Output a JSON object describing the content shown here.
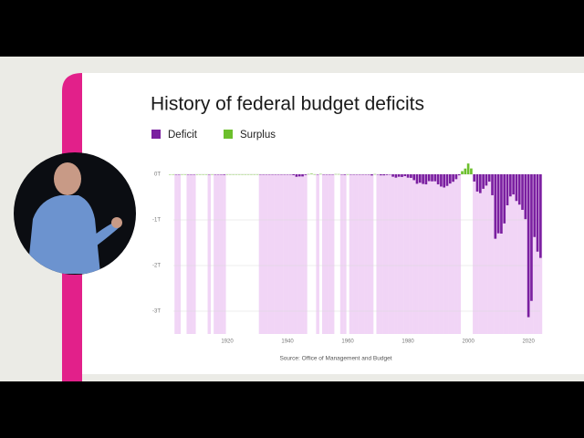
{
  "chart_data": {
    "type": "bar",
    "title": "History of federal budget deficits",
    "source": "Source: Office of Management and Budget",
    "x": [
      1901,
      1902,
      1903,
      1904,
      1905,
      1906,
      1907,
      1908,
      1909,
      1910,
      1911,
      1912,
      1913,
      1914,
      1915,
      1916,
      1917,
      1918,
      1919,
      1920,
      1921,
      1922,
      1923,
      1924,
      1925,
      1926,
      1927,
      1928,
      1929,
      1930,
      1931,
      1932,
      1933,
      1934,
      1935,
      1936,
      1937,
      1938,
      1939,
      1940,
      1941,
      1942,
      1943,
      1944,
      1945,
      1946,
      1947,
      1948,
      1949,
      1950,
      1951,
      1952,
      1953,
      1954,
      1955,
      1956,
      1957,
      1958,
      1959,
      1960,
      1961,
      1962,
      1963,
      1964,
      1965,
      1966,
      1967,
      1968,
      1969,
      1970,
      1971,
      1972,
      1973,
      1974,
      1975,
      1976,
      1977,
      1978,
      1979,
      1980,
      1981,
      1982,
      1983,
      1984,
      1985,
      1986,
      1987,
      1988,
      1989,
      1990,
      1991,
      1992,
      1993,
      1994,
      1995,
      1996,
      1997,
      1998,
      1999,
      2000,
      2001,
      2002,
      2003,
      2004,
      2005,
      2006,
      2007,
      2008,
      2009,
      2010,
      2011,
      2012,
      2013,
      2014,
      2015,
      2016,
      2017,
      2018,
      2019,
      2020,
      2021,
      2022,
      2023,
      2024
    ],
    "series": [
      {
        "name": "Deficit",
        "color": "#7a1fa0",
        "shade_color": "#f1d5f6",
        "values": [
          0.0001,
          0.0001,
          -0.0001,
          -0.0001,
          0.0001,
          0.0001,
          -0.0001,
          -0.0001,
          -0.0001,
          0.0001,
          0.0001,
          0.0001,
          0.0001,
          -0.0001,
          0.0001,
          -0.0001,
          -0.001,
          -0.009,
          -0.013,
          0.0003,
          0.0005,
          0.0005,
          0.0005,
          0.0005,
          0.0005,
          0.0005,
          0.0005,
          0.0005,
          0.0005,
          0.0007,
          -0.0005,
          -0.0027,
          -0.0026,
          -0.0036,
          -0.0028,
          -0.0044,
          -0.0028,
          -0.0001,
          -0.0029,
          -0.0029,
          -0.0049,
          -0.02,
          -0.0547,
          -0.0474,
          -0.0474,
          -0.0159,
          0.004,
          0.0119,
          0.0006,
          -0.0031,
          0.0061,
          -0.0015,
          -0.0065,
          -0.0012,
          -0.003,
          0.0039,
          0.0034,
          -0.0028,
          -0.0128,
          0.0003,
          -0.0033,
          -0.0071,
          -0.0048,
          -0.0059,
          -0.0014,
          -0.0037,
          -0.0086,
          -0.0252,
          0.0032,
          -0.0028,
          -0.023,
          -0.0234,
          -0.0149,
          -0.0061,
          -0.0532,
          -0.0737,
          -0.0537,
          -0.059,
          -0.0407,
          -0.0738,
          -0.079,
          -0.128,
          -0.208,
          -0.185,
          -0.212,
          -0.221,
          -0.15,
          -0.155,
          -0.153,
          -0.221,
          -0.269,
          -0.29,
          -0.255,
          -0.203,
          -0.164,
          -0.107,
          -0.022,
          0.069,
          0.126,
          0.236,
          0.128,
          -0.158,
          -0.378,
          -0.413,
          -0.318,
          -0.248,
          -0.161,
          -0.459,
          -1.413,
          -1.294,
          -1.3,
          -1.077,
          -0.68,
          -0.485,
          -0.442,
          -0.585,
          -0.665,
          -0.779,
          -0.984,
          -3.132,
          -2.775,
          -1.375,
          -1.695,
          -1.833
        ]
      },
      {
        "name": "Surplus",
        "color": "#6cbf2c"
      }
    ],
    "xlim": [
      1900,
      2024.5
    ],
    "xticks": [
      1920,
      1940,
      1960,
      1980,
      2000,
      2020
    ],
    "ylim": [
      -3.5,
      0.32
    ],
    "yticks": [
      {
        "value": 0,
        "label": "0T"
      },
      {
        "value": -1,
        "label": "-1T"
      },
      {
        "value": -2,
        "label": "-2T"
      },
      {
        "value": -3,
        "label": "-3T"
      }
    ],
    "grid": true
  }
}
